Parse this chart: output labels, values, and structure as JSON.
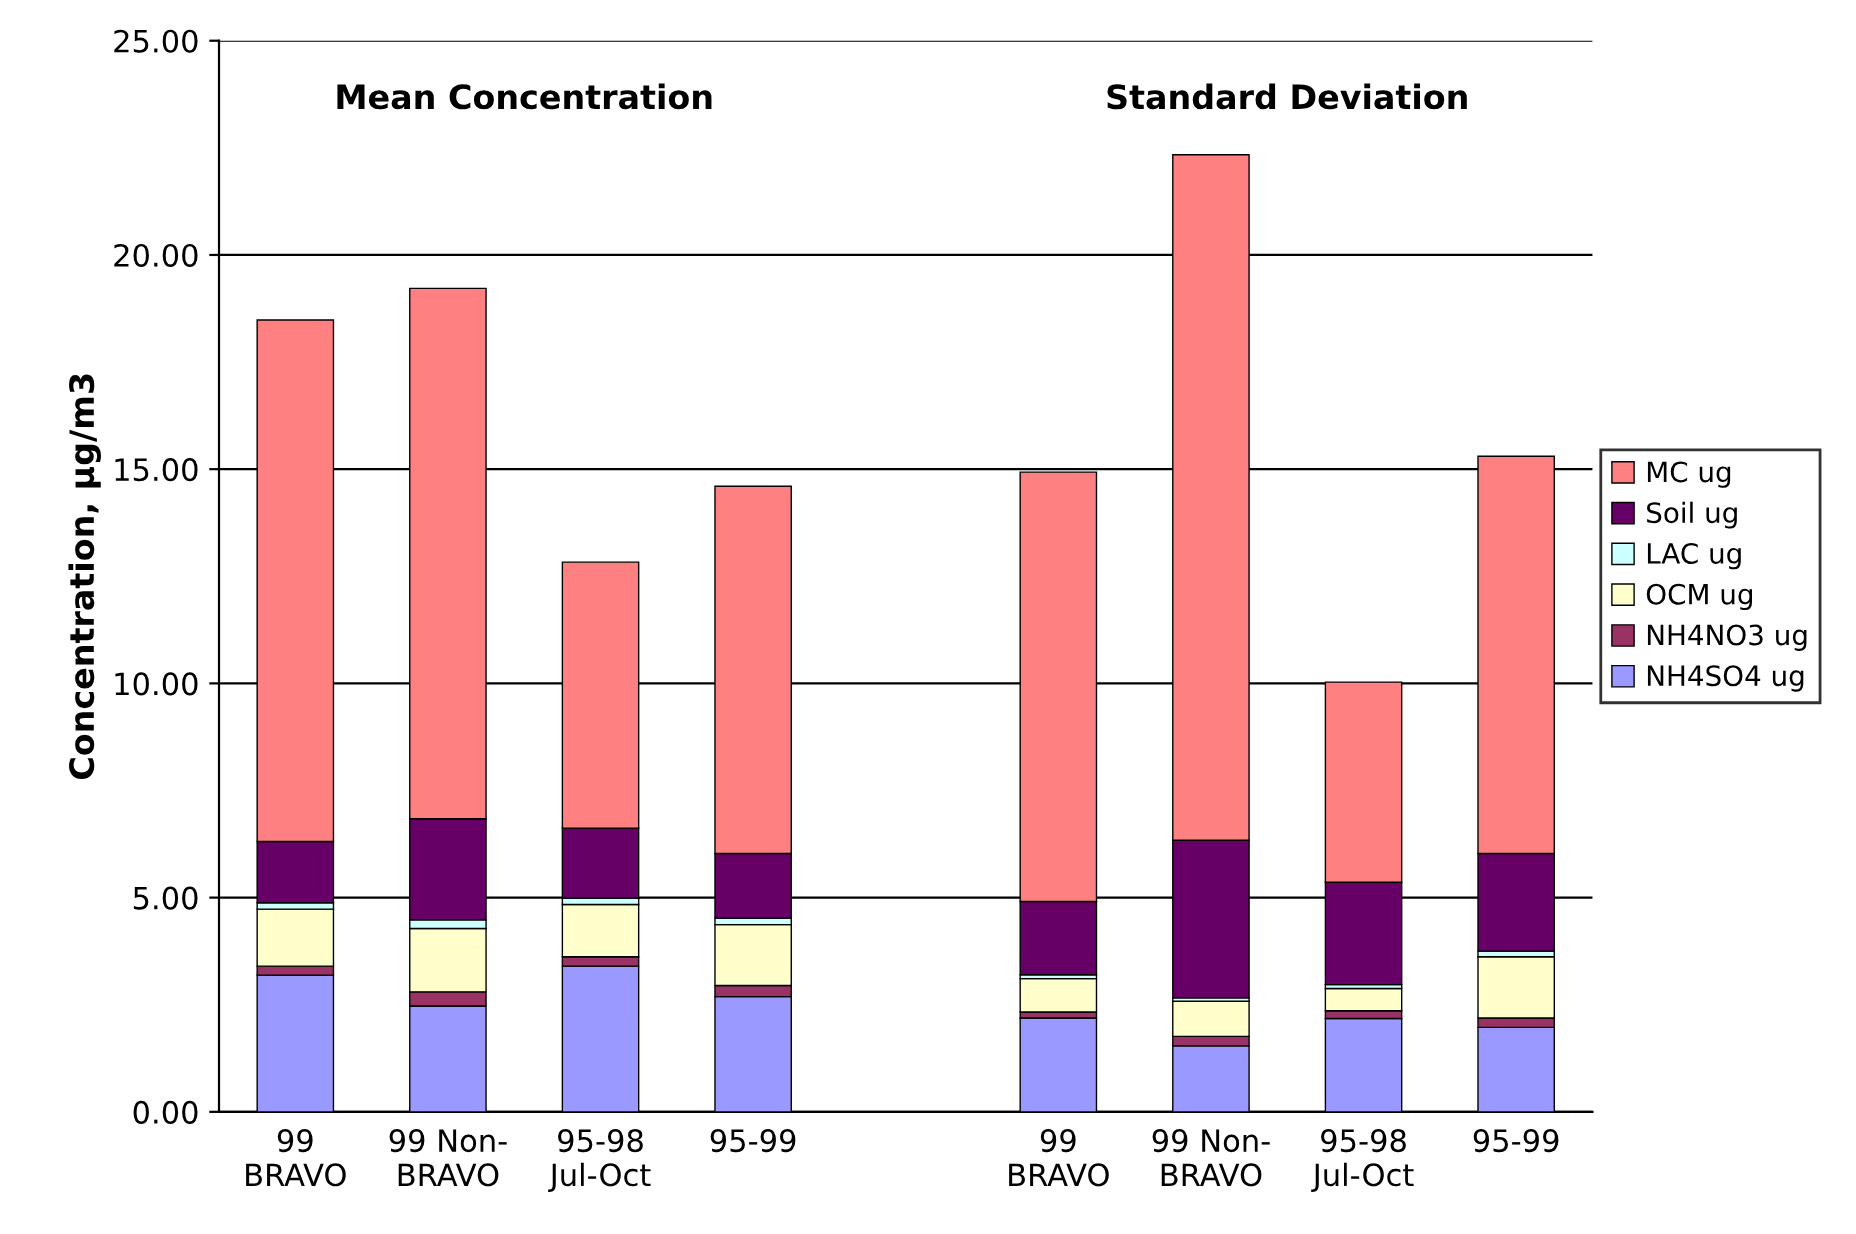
{
  "chart_data": {
    "type": "bar",
    "stacked": true,
    "categories": [
      "99\nBRAVO",
      "99 Non-\nBRAVO",
      "95-98\nJul-Oct",
      "95-99",
      null,
      "99\nBRAVO",
      "99 Non-\nBRAVO",
      "95-98\nJul-Oct",
      "95-99"
    ],
    "series": [
      {
        "name": "NH4SO4 ug",
        "color": "#9999ff",
        "values": [
          3.19,
          2.47,
          3.4,
          2.69,
          null,
          2.19,
          1.54,
          2.18,
          1.97
        ]
      },
      {
        "name": "NH4NO3 ug",
        "color": "#993366",
        "values": [
          0.21,
          0.33,
          0.22,
          0.26,
          null,
          0.14,
          0.22,
          0.18,
          0.22
        ]
      },
      {
        "name": "OCM ug",
        "color": "#ffffcc",
        "values": [
          1.33,
          1.48,
          1.22,
          1.42,
          null,
          0.78,
          0.82,
          0.52,
          1.43
        ]
      },
      {
        "name": "LAC ug",
        "color": "#ccffff",
        "values": [
          0.15,
          0.2,
          0.15,
          0.15,
          null,
          0.09,
          0.08,
          0.09,
          0.13
        ]
      },
      {
        "name": "Soil ug",
        "color": "#660066",
        "values": [
          1.43,
          2.36,
          1.63,
          1.51,
          null,
          1.71,
          3.68,
          2.39,
          2.28
        ]
      },
      {
        "name": "MC ug",
        "color": "#ff8080",
        "values": [
          12.17,
          12.38,
          6.21,
          8.57,
          null,
          10.02,
          16.0,
          4.67,
          9.27
        ]
      }
    ],
    "ylabel": "Concentration, µg/m3",
    "annotations": [
      "Mean Concentration",
      "Standard Deviation"
    ],
    "ylim": [
      0,
      25
    ],
    "yticks": [
      {
        "value": 0,
        "label": "0.00"
      },
      {
        "value": 5,
        "label": "5.00"
      },
      {
        "value": 10,
        "label": "10.00"
      },
      {
        "value": 15,
        "label": "15.00"
      },
      {
        "value": 20,
        "label": "20.00"
      },
      {
        "value": 25,
        "label": "25.00"
      }
    ],
    "grid": "y",
    "legend": "right"
  }
}
